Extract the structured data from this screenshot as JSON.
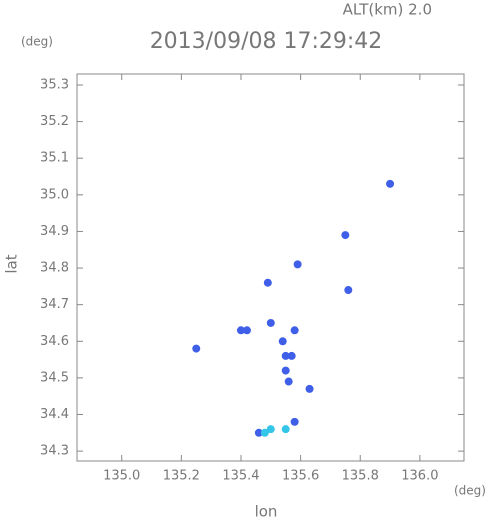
{
  "chart_data": {
    "type": "scatter",
    "title": "2013/09/08 17:29:42",
    "altitude_label": "ALT(km) 2.0",
    "y_unit": "(deg)",
    "x_unit": "(deg)",
    "x_label": "lon",
    "y_label": "lat",
    "xlim": [
      134.85,
      136.148
    ],
    "ylim": [
      34.273,
      35.33
    ],
    "xticks": [
      {
        "value": 135.0,
        "label": "135.0"
      },
      135.2,
      135.4,
      135.6,
      135.8,
      {
        "value": 136.0,
        "label": "136.0"
      }
    ],
    "yticks": [
      34.3,
      34.4,
      34.5,
      34.6,
      34.7,
      34.8,
      34.9,
      {
        "value": 35.0,
        "label": "35.0"
      },
      35.1,
      35.2,
      35.3
    ],
    "series": [
      {
        "color": "#3f5fe8",
        "x": [
          135.9,
          135.75,
          135.76,
          135.59,
          135.25,
          135.4,
          135.42,
          135.49,
          135.5,
          135.54,
          135.55,
          135.57,
          135.55,
          135.56,
          135.58,
          135.63,
          135.58,
          135.46
        ],
        "y": [
          35.03,
          34.89,
          34.74,
          34.81,
          34.58,
          34.63,
          34.63,
          34.76,
          34.65,
          34.6,
          34.56,
          34.56,
          34.52,
          34.49,
          34.63,
          34.47,
          34.38,
          34.35
        ]
      },
      {
        "color": "#33c6e8",
        "x": [
          135.48,
          135.5,
          135.55
        ],
        "y": [
          34.35,
          34.36,
          34.36
        ]
      }
    ]
  }
}
